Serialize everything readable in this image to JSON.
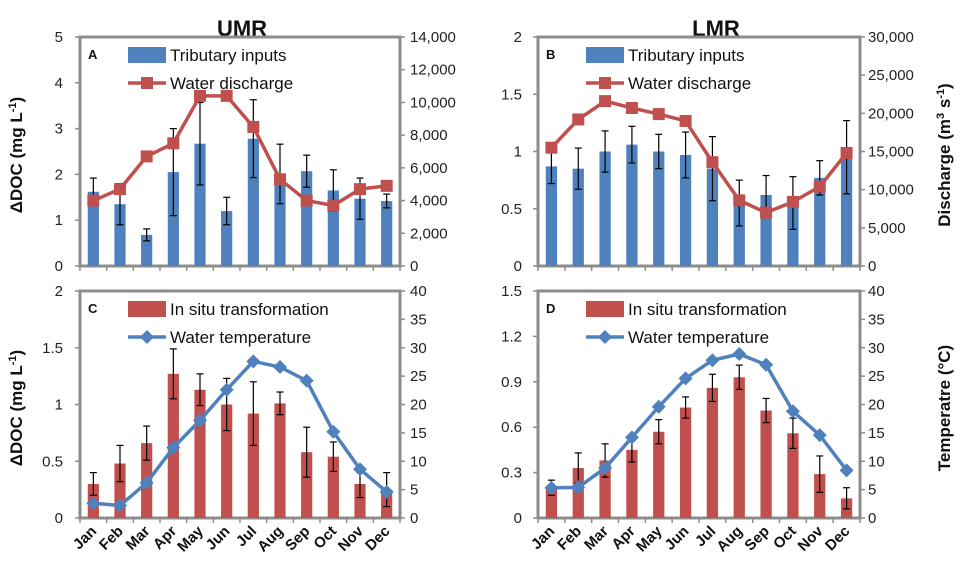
{
  "colors": {
    "tributary": "#4f81bd",
    "discharge": "#c0504d",
    "transformation": "#c0504d",
    "temperature": "#4f81bd",
    "frame": "#8c8c8c"
  },
  "titles": {
    "umr": "UMR",
    "lmr": "LMR"
  },
  "axis_labels": {
    "ddoc_top": "ΔDOC (mg L",
    "ddoc_sup": "-1",
    "ddoc_end": ")",
    "ddoc_bottom": "ΔDOC (mg L",
    "discharge": "Discharge (m",
    "discharge_sup1": "3",
    "discharge_mid": " s",
    "discharge_sup2": "-1",
    "discharge_end": ")",
    "temperature": "Temperatre (°C)"
  },
  "chart_data": [
    {
      "type": "bar",
      "panel_letter": "A",
      "categories": [
        "Jan",
        "Feb",
        "Mar",
        "Apr",
        "May",
        "Jun",
        "Jul",
        "Aug",
        "Sep",
        "Oct",
        "Nov",
        "Dec"
      ],
      "series": [
        {
          "name": "Tributary inputs",
          "kind": "bar",
          "axis": "left",
          "values": [
            1.62,
            1.35,
            0.68,
            2.05,
            2.67,
            1.2,
            2.78,
            2.01,
            2.07,
            1.65,
            1.47,
            1.42
          ],
          "errors": [
            0.3,
            0.45,
            0.13,
            0.95,
            0.9,
            0.3,
            0.85,
            0.65,
            0.35,
            0.45,
            0.45,
            0.15
          ]
        },
        {
          "name": "Water discharge",
          "kind": "line",
          "axis": "right",
          "marker": "square",
          "values": [
            4000,
            4700,
            6700,
            7500,
            10400,
            10400,
            8500,
            5300,
            4000,
            3700,
            4700,
            4900
          ]
        }
      ],
      "left_ticks": [
        "0",
        "1",
        "2",
        "3",
        "4",
        "5"
      ],
      "right_ticks": [
        "0",
        "2,000",
        "4,000",
        "6,000",
        "8,000",
        "10,000",
        "12,000",
        "14,000"
      ],
      "ylim": [
        0,
        5
      ],
      "y2lim": [
        0,
        14000
      ],
      "legend": "top-left"
    },
    {
      "type": "bar",
      "panel_letter": "B",
      "categories": [
        "Jan",
        "Feb",
        "Mar",
        "Apr",
        "May",
        "Jun",
        "Jul",
        "Aug",
        "Sep",
        "Oct",
        "Nov",
        "Dec"
      ],
      "series": [
        {
          "name": "Tributary inputs",
          "kind": "bar",
          "axis": "left",
          "values": [
            0.87,
            0.85,
            1.0,
            1.06,
            1.0,
            0.97,
            0.85,
            0.55,
            0.62,
            0.55,
            0.77,
            0.95
          ],
          "errors": [
            0.15,
            0.18,
            0.18,
            0.16,
            0.15,
            0.2,
            0.28,
            0.2,
            0.17,
            0.23,
            0.15,
            0.32
          ]
        },
        {
          "name": "Water discharge",
          "kind": "line",
          "axis": "right",
          "marker": "square",
          "values": [
            15500,
            19200,
            21600,
            20700,
            19900,
            19000,
            13600,
            8600,
            7000,
            8400,
            10400,
            14800
          ]
        }
      ],
      "left_ticks": [
        "0",
        "0.5",
        "1",
        "1.5",
        "2"
      ],
      "right_ticks": [
        "0",
        "5,000",
        "10,000",
        "15,000",
        "20,000",
        "25,000",
        "30,000"
      ],
      "ylim": [
        0,
        2
      ],
      "y2lim": [
        0,
        30000
      ],
      "legend": "top-left"
    },
    {
      "type": "bar",
      "panel_letter": "C",
      "categories": [
        "Jan",
        "Feb",
        "Mar",
        "Apr",
        "May",
        "Jun",
        "Jul",
        "Aug",
        "Sep",
        "Oct",
        "Nov",
        "Dec"
      ],
      "series": [
        {
          "name": "In situ transformation",
          "kind": "bar",
          "axis": "left",
          "values": [
            0.3,
            0.48,
            0.66,
            1.27,
            1.13,
            1.0,
            0.92,
            1.01,
            0.58,
            0.54,
            0.3,
            0.25
          ],
          "errors": [
            0.1,
            0.16,
            0.15,
            0.22,
            0.14,
            0.23,
            0.28,
            0.1,
            0.22,
            0.13,
            0.12,
            0.15
          ]
        },
        {
          "name": "Water temperature",
          "kind": "line",
          "axis": "right",
          "marker": "diamond",
          "values": [
            2.6,
            2.2,
            6.2,
            12.4,
            17.2,
            22.6,
            27.6,
            26.6,
            24.2,
            15.2,
            8.6,
            4.6
          ]
        }
      ],
      "left_ticks": [
        "0",
        "0.5",
        "1",
        "1.5",
        "2"
      ],
      "right_ticks": [
        "0",
        "5",
        "10",
        "15",
        "20",
        "25",
        "30",
        "35",
        "40"
      ],
      "ylim": [
        0,
        2
      ],
      "y2lim": [
        0,
        40
      ],
      "legend": "top-left"
    },
    {
      "type": "bar",
      "panel_letter": "D",
      "categories": [
        "Jan",
        "Feb",
        "Mar",
        "Apr",
        "May",
        "Jun",
        "Jul",
        "Aug",
        "Sep",
        "Oct",
        "Nov",
        "Dec"
      ],
      "series": [
        {
          "name": "In situ transformation",
          "kind": "bar",
          "axis": "left",
          "values": [
            0.2,
            0.33,
            0.38,
            0.45,
            0.57,
            0.73,
            0.86,
            0.93,
            0.71,
            0.56,
            0.29,
            0.13
          ],
          "errors": [
            0.05,
            0.1,
            0.11,
            0.08,
            0.08,
            0.07,
            0.09,
            0.08,
            0.08,
            0.1,
            0.12,
            0.07
          ]
        },
        {
          "name": "Water temperature",
          "kind": "line",
          "axis": "right",
          "marker": "diamond",
          "values": [
            5.3,
            5.4,
            8.8,
            14.2,
            19.6,
            24.6,
            27.8,
            28.9,
            27.0,
            18.8,
            14.6,
            8.4
          ]
        }
      ],
      "left_ticks": [
        "0",
        "0.3",
        "0.6",
        "0.9",
        "1.2",
        "1.5"
      ],
      "right_ticks": [
        "0",
        "5",
        "10",
        "15",
        "20",
        "25",
        "30",
        "35",
        "40"
      ],
      "ylim": [
        0,
        1.5
      ],
      "y2lim": [
        0,
        40
      ],
      "legend": "top-left"
    }
  ]
}
